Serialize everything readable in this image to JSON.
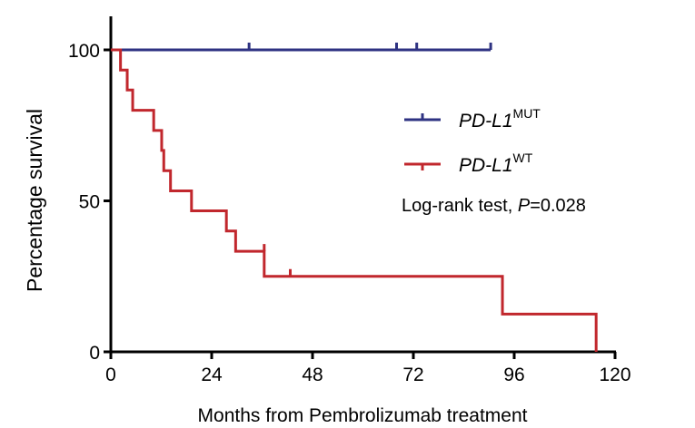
{
  "chart_data": {
    "type": "line",
    "subtype": "kaplan-meier",
    "xlabel": "Months from Pembrolizumab treatment",
    "ylabel": "Percentage survival",
    "xlim": [
      0,
      120
    ],
    "ylim": [
      0,
      100
    ],
    "xticks": [
      0,
      24,
      48,
      72,
      96,
      120
    ],
    "yticks": [
      0,
      50,
      100
    ],
    "grid": false,
    "legend_position": "right",
    "annotation": {
      "prefix": "Log-rank test, ",
      "p": "P",
      "value": "=0.028"
    },
    "series": [
      {
        "name": "PD-L1",
        "sup": "MUT",
        "color": "#2e3282",
        "steps": [
          [
            0,
            100
          ],
          [
            90.4,
            100
          ]
        ],
        "censors": [
          [
            32.9,
            100
          ],
          [
            68,
            100
          ],
          [
            72.8,
            100
          ],
          [
            90.4,
            100
          ]
        ]
      },
      {
        "name": "PD-L1",
        "sup": "WT",
        "color": "#c1272d",
        "steps": [
          [
            0,
            100
          ],
          [
            2.3,
            93.3
          ],
          [
            3.9,
            86.7
          ],
          [
            5.2,
            80
          ],
          [
            10.2,
            73.3
          ],
          [
            12.1,
            66.7
          ],
          [
            12.6,
            60
          ],
          [
            14.2,
            53.3
          ],
          [
            19.2,
            46.7
          ],
          [
            27.5,
            40
          ],
          [
            29.7,
            33.3
          ],
          [
            36.5,
            25
          ],
          [
            93.2,
            12.5
          ],
          [
            115.5,
            0
          ]
        ],
        "censors": [
          [
            36.5,
            33.3
          ],
          [
            42.7,
            25
          ]
        ]
      }
    ]
  }
}
